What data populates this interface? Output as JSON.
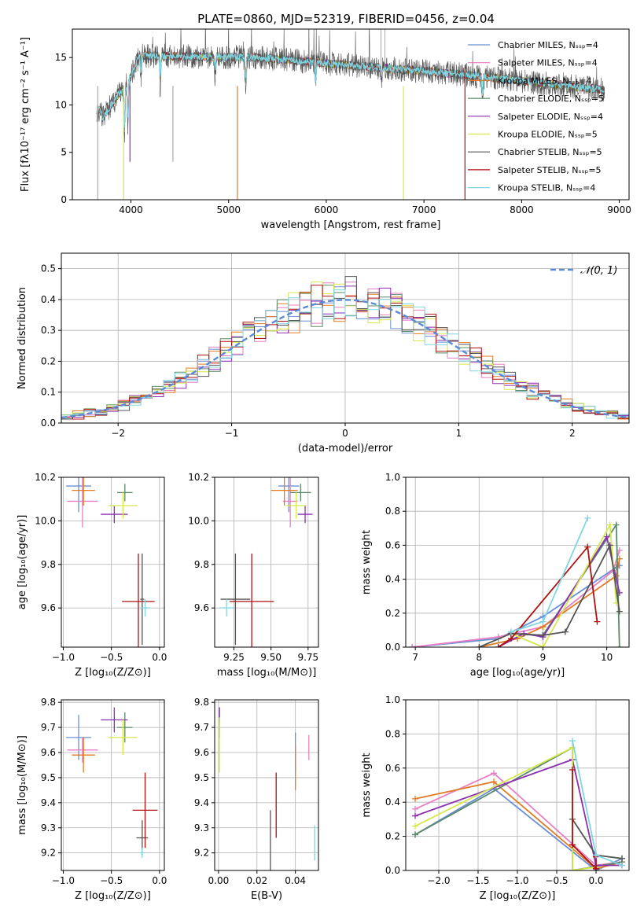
{
  "title": "PLATE=0860, MJD=52319, FIBERID=0456, z=0.04",
  "chart_data": [
    {
      "id": "spectrum",
      "type": "line",
      "xlabel": "wavelength [Angstrom, rest frame]",
      "ylabel": "Flux [fλ10⁻¹⁷ erg cm⁻² s⁻¹ A⁻¹]",
      "xlim": [
        3400,
        9100
      ],
      "ylim": [
        0,
        18
      ],
      "xticks": [
        4000,
        5000,
        6000,
        7000,
        8000,
        9000
      ],
      "yticks": [
        0,
        5,
        10,
        15
      ],
      "legend_position": "top-right",
      "series": [
        {
          "name": "Chabrier MILES, Nₛₛₚ=4",
          "color": "#6a8fd6"
        },
        {
          "name": "Salpeter MILES, Nₛₛₚ=4",
          "color": "#e87fc4"
        },
        {
          "name": "Kroupa MILES, Nₛₛₚ=4",
          "color": "#e07b24"
        },
        {
          "name": "Chabrier ELODIE, Nₛₛₚ=5",
          "color": "#5b8a6a"
        },
        {
          "name": "Salpeter ELODIE, Nₛₛₚ=4",
          "color": "#8b2fb3"
        },
        {
          "name": "Kroupa ELODIE, Nₛₛₚ=5",
          "color": "#d6e84a"
        },
        {
          "name": "Chabrier STELIB, Nₛₛₚ=5",
          "color": "#555555"
        },
        {
          "name": "Salpeter STELIB, Nₛₛₚ=5",
          "color": "#b01010"
        },
        {
          "name": "Kroupa STELIB, Nₛₛₚ=4",
          "color": "#7fd6e0"
        }
      ]
    },
    {
      "id": "residuals",
      "type": "histogram",
      "xlabel": "(data-model)/error",
      "ylabel": "Normed distribution",
      "xlim": [
        -2.5,
        2.5
      ],
      "ylim": [
        0,
        0.55
      ],
      "xticks": [
        -2,
        -1,
        0,
        1,
        2
      ],
      "yticks": [
        0.0,
        0.1,
        0.2,
        0.3,
        0.4,
        0.5
      ],
      "grid": true,
      "legend": "𝒩(0, 1)",
      "legend_position": "top-right"
    },
    {
      "id": "age-vs-Z",
      "type": "errorbar",
      "xlabel": "Z [log₁₀(Z/Z⊙)]",
      "ylabel": "age  [log₁₀(age/yr)]",
      "xlim": [
        -1.02,
        0.05
      ],
      "ylim": [
        9.42,
        10.2
      ],
      "xticks": [
        -1.0,
        -0.5,
        0.0
      ],
      "yticks": [
        9.6,
        9.8,
        10.0,
        10.2
      ],
      "grid": true,
      "points": [
        {
          "x": -0.84,
          "y": 10.16,
          "xerr": 0.13,
          "yerr": 0.12,
          "color": "#6a8fd6"
        },
        {
          "x": -0.8,
          "y": 10.09,
          "xerr": 0.16,
          "yerr": 0.12,
          "color": "#e87fc4"
        },
        {
          "x": -0.79,
          "y": 10.14,
          "xerr": 0.12,
          "yerr": 0.07,
          "color": "#e07b24"
        },
        {
          "x": -0.36,
          "y": 10.13,
          "xerr": 0.08,
          "yerr": 0.04,
          "color": "#5b8a6a"
        },
        {
          "x": -0.47,
          "y": 10.03,
          "xerr": 0.14,
          "yerr": 0.04,
          "color": "#8b2fb3"
        },
        {
          "x": -0.38,
          "y": 10.07,
          "xerr": 0.15,
          "yerr": 0.06,
          "color": "#d6e84a"
        },
        {
          "x": -0.18,
          "y": 9.64,
          "xerr": 0.02,
          "yerr": 0.21,
          "color": "#555555"
        },
        {
          "x": -0.22,
          "y": 9.63,
          "xerr": 0.17,
          "yerr": 0.22,
          "color": "#b01010"
        },
        {
          "x": -0.15,
          "y": 9.6,
          "xerr": 0.05,
          "yerr": 0.04,
          "color": "#7fd6e0"
        }
      ]
    },
    {
      "id": "age-vs-mass",
      "type": "errorbar",
      "xlabel": "mass [log₁₀(M/M⊙)]",
      "xlim": [
        9.12,
        9.82
      ],
      "ylim": [
        9.42,
        10.2
      ],
      "xticks": [
        9.25,
        9.5,
        9.75
      ],
      "yticks": [
        9.6,
        9.8,
        10.0,
        10.2
      ],
      "grid": true,
      "points": [
        {
          "x": 9.62,
          "y": 10.16,
          "xerr": 0.07,
          "yerr": 0.12,
          "color": "#6a8fd6"
        },
        {
          "x": 9.63,
          "y": 10.09,
          "xerr": 0.05,
          "yerr": 0.12,
          "color": "#e87fc4"
        },
        {
          "x": 9.59,
          "y": 10.14,
          "xerr": 0.09,
          "yerr": 0.07,
          "color": "#e07b24"
        },
        {
          "x": 9.7,
          "y": 10.13,
          "xerr": 0.07,
          "yerr": 0.04,
          "color": "#5b8a6a"
        },
        {
          "x": 9.73,
          "y": 10.03,
          "xerr": 0.05,
          "yerr": 0.04,
          "color": "#8b2fb3"
        },
        {
          "x": 9.67,
          "y": 10.07,
          "xerr": 0.07,
          "yerr": 0.06,
          "color": "#d6e84a"
        },
        {
          "x": 9.26,
          "y": 9.64,
          "xerr": 0.1,
          "yerr": 0.21,
          "color": "#555555"
        },
        {
          "x": 9.37,
          "y": 9.63,
          "xerr": 0.15,
          "yerr": 0.22,
          "color": "#b01010"
        },
        {
          "x": 9.2,
          "y": 9.6,
          "xerr": 0.05,
          "yerr": 0.04,
          "color": "#7fd6e0"
        }
      ]
    },
    {
      "id": "weight-vs-age",
      "type": "line",
      "xlabel": "age  [log₁₀(age/yr)]",
      "ylabel": "mass weight",
      "xlim": [
        6.85,
        10.35
      ],
      "ylim": [
        0,
        1.0
      ],
      "xticks": [
        7,
        8,
        9,
        10
      ],
      "yticks": [
        0.0,
        0.2,
        0.4,
        0.6,
        0.8,
        1.0
      ],
      "grid": true,
      "series": [
        {
          "color": "#6a8fd6",
          "x": [
            6.95,
            8.3,
            9.0,
            10.15,
            10.2
          ],
          "y": [
            0.0,
            0.05,
            0.18,
            0.47,
            0.48
          ]
        },
        {
          "color": "#e87fc4",
          "x": [
            6.95,
            8.3,
            9.0,
            10.1,
            10.2
          ],
          "y": [
            0.0,
            0.06,
            0.12,
            0.45,
            0.57
          ]
        },
        {
          "color": "#e07b24",
          "x": [
            8.0,
            8.6,
            9.0,
            10.15,
            10.2
          ],
          "y": [
            0.0,
            0.05,
            0.12,
            0.42,
            0.52
          ]
        },
        {
          "color": "#5b8a6a",
          "x": [
            8.5,
            9.0,
            10.15,
            10.2
          ],
          "y": [
            0.08,
            0.07,
            0.72,
            0.0
          ]
        },
        {
          "color": "#8b2fb3",
          "x": [
            8.3,
            8.7,
            9.0,
            10.0,
            10.2
          ],
          "y": [
            0.0,
            0.08,
            0.06,
            0.65,
            0.32
          ]
        },
        {
          "color": "#d6e84a",
          "x": [
            8.5,
            9.0,
            10.05,
            10.15
          ],
          "y": [
            0.08,
            0.0,
            0.72,
            0.26
          ]
        },
        {
          "color": "#555555",
          "x": [
            8.0,
            8.5,
            9.0,
            9.35,
            10.05,
            10.2
          ],
          "y": [
            0.0,
            0.08,
            0.07,
            0.09,
            0.6,
            0.21
          ]
        },
        {
          "color": "#b01010",
          "x": [
            8.3,
            8.5,
            9.7,
            9.85
          ],
          "y": [
            0.0,
            0.05,
            0.59,
            0.15
          ]
        },
        {
          "color": "#7fd6e0",
          "x": [
            8.5,
            9.0,
            9.7
          ],
          "y": [
            0.09,
            0.15,
            0.76
          ]
        }
      ]
    },
    {
      "id": "mass-vs-Z",
      "type": "errorbar",
      "xlabel": "Z [log₁₀(Z/Z⊙)]",
      "ylabel": "mass [log₁₀(M/M⊙)]",
      "xlim": [
        -1.02,
        0.05
      ],
      "ylim": [
        9.13,
        9.81
      ],
      "xticks": [
        -1.0,
        -0.5,
        0.0
      ],
      "yticks": [
        9.2,
        9.3,
        9.4,
        9.5,
        9.6,
        9.7,
        9.8
      ],
      "grid": true,
      "points": [
        {
          "x": -0.84,
          "y": 9.66,
          "xerr": 0.13,
          "yerr": 0.09,
          "color": "#6a8fd6"
        },
        {
          "x": -0.8,
          "y": 9.61,
          "xerr": 0.16,
          "yerr": 0.05,
          "color": "#e87fc4"
        },
        {
          "x": -0.79,
          "y": 9.59,
          "xerr": 0.12,
          "yerr": 0.07,
          "color": "#e07b24"
        },
        {
          "x": -0.36,
          "y": 9.7,
          "xerr": 0.08,
          "yerr": 0.06,
          "color": "#5b8a6a"
        },
        {
          "x": -0.47,
          "y": 9.73,
          "xerr": 0.14,
          "yerr": 0.05,
          "color": "#8b2fb3"
        },
        {
          "x": -0.38,
          "y": 9.66,
          "xerr": 0.15,
          "yerr": 0.07,
          "color": "#d6e84a"
        },
        {
          "x": -0.18,
          "y": 9.26,
          "xerr": 0.06,
          "yerr": 0.07,
          "color": "#555555"
        },
        {
          "x": -0.15,
          "y": 9.37,
          "xerr": 0.13,
          "yerr": 0.15,
          "color": "#b01010"
        },
        {
          "x": -0.18,
          "y": 9.2,
          "xerr": 0.02,
          "yerr": 0.02,
          "color": "#7fd6e0"
        }
      ]
    },
    {
      "id": "mass-vs-ebv",
      "type": "errorbar",
      "xlabel": "E(B-V)",
      "xlim": [
        -0.002,
        0.052
      ],
      "ylim": [
        9.13,
        9.81
      ],
      "xticks": [
        0.0,
        0.02,
        0.04
      ],
      "yticks": [
        9.2,
        9.3,
        9.4,
        9.5,
        9.6,
        9.7,
        9.8
      ],
      "grid": true,
      "points": [
        {
          "x": 0.04,
          "y": 9.6,
          "yerr": 0.08,
          "color": "#6a8fd6"
        },
        {
          "x": 0.047,
          "y": 9.62,
          "yerr": 0.05,
          "color": "#e87fc4"
        },
        {
          "x": 0.04,
          "y": 9.54,
          "yerr": 0.09,
          "color": "#e07b24"
        },
        {
          "x": 0.0005,
          "y": 9.72,
          "yerr": 0.06,
          "color": "#5b8a6a"
        },
        {
          "x": 0.0005,
          "y": 9.75,
          "yerr": 0.03,
          "color": "#8b2fb3"
        },
        {
          "x": 0.0005,
          "y": 9.63,
          "yerr": 0.11,
          "color": "#d6e84a"
        },
        {
          "x": 0.027,
          "y": 9.22,
          "yerr": 0.15,
          "color": "#555555"
        },
        {
          "x": 0.03,
          "y": 9.39,
          "yerr": 0.13,
          "color": "#b01010"
        },
        {
          "x": 0.05,
          "y": 9.24,
          "yerr": 0.07,
          "color": "#7fd6e0"
        }
      ]
    },
    {
      "id": "weight-vs-Z",
      "type": "line",
      "xlabel": "Z [log₁₀(Z/Z⊙)]",
      "ylabel": "mass weight",
      "xlim": [
        -2.42,
        0.42
      ],
      "ylim": [
        0,
        1.0
      ],
      "xticks": [
        -2.0,
        -1.5,
        -1.0,
        -0.5,
        0.0
      ],
      "yticks": [
        0.0,
        0.2,
        0.4,
        0.6,
        0.8,
        1.0
      ],
      "grid": true,
      "series": [
        {
          "color": "#6a8fd6",
          "x": [
            -2.3,
            -1.3,
            0.0,
            0.33
          ],
          "y": [
            0.21,
            0.48,
            0.0,
            0.07
          ]
        },
        {
          "color": "#e87fc4",
          "x": [
            -2.3,
            -1.3,
            0.0,
            0.33
          ],
          "y": [
            0.36,
            0.57,
            0.03,
            0.05
          ]
        },
        {
          "color": "#e07b24",
          "x": [
            -2.3,
            -1.3,
            0.0,
            0.33
          ],
          "y": [
            0.42,
            0.52,
            0.01,
            0.05
          ]
        },
        {
          "color": "#5b8a6a",
          "x": [
            -2.3,
            -0.3,
            -0.3,
            0.33
          ],
          "y": [
            0.21,
            0.72,
            0.0,
            0.05
          ]
        },
        {
          "color": "#8b2fb3",
          "x": [
            -2.3,
            -0.3,
            0.0,
            0.33
          ],
          "y": [
            0.32,
            0.65,
            0.03,
            0.03
          ]
        },
        {
          "color": "#d6e84a",
          "x": [
            -2.3,
            -0.3,
            -0.3,
            0.0
          ],
          "y": [
            0.26,
            0.72,
            0.0,
            0.02
          ]
        },
        {
          "color": "#555555",
          "x": [
            -0.3,
            0.0,
            0.33
          ],
          "y": [
            0.3,
            0.09,
            0.07
          ]
        },
        {
          "color": "#b01010",
          "x": [
            -0.3,
            -0.3,
            -0.3,
            0.0,
            0.0
          ],
          "y": [
            0.59,
            0.15,
            0.15,
            0.01,
            0.08
          ]
        },
        {
          "color": "#7fd6e0",
          "x": [
            -0.3,
            0.0,
            0.33
          ],
          "y": [
            0.76,
            0.09,
            0.03
          ]
        }
      ]
    }
  ]
}
